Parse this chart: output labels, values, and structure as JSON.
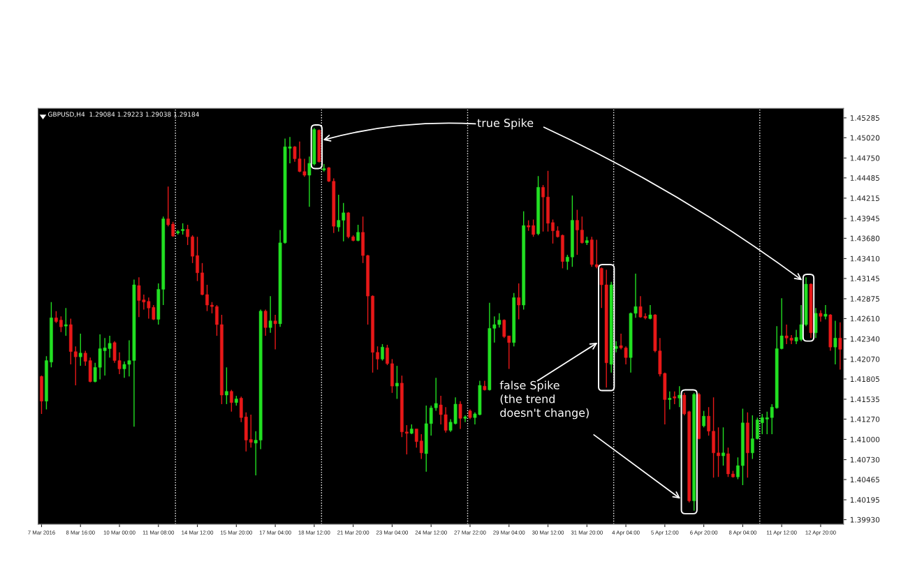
{
  "chart_data": {
    "type": "candlestick",
    "title": "GBPUSD,H4  1.29084 1.29223 1.29038 1.29184",
    "categories": [
      "7 Mar 2016",
      null,
      null,
      null,
      null,
      null,
      null,
      null,
      "8 Mar 16:00",
      null,
      null,
      null,
      null,
      null,
      null,
      null,
      "10 Mar 00:00",
      null,
      null,
      null,
      null,
      null,
      null,
      null,
      "11 Mar 08:00",
      null,
      null,
      null,
      null,
      null,
      null,
      null,
      "14 Mar 12:00",
      null,
      null,
      null,
      null,
      null,
      null,
      null,
      "15 Mar 20:00",
      null,
      null,
      null,
      null,
      null,
      null,
      null,
      "17 Mar 04:00",
      null,
      null,
      null,
      null,
      null,
      null,
      null,
      "18 Mar 12:00",
      null,
      null,
      null,
      null,
      null,
      null,
      null,
      "21 Mar 20:00",
      null,
      null,
      null,
      null,
      null,
      null,
      null,
      "23 Mar 04:00",
      null,
      null,
      null,
      null,
      null,
      null,
      null,
      "24 Mar 12:00",
      null,
      null,
      null,
      null,
      null,
      null,
      null,
      "27 Mar 22:00",
      null,
      null,
      null,
      null,
      null,
      null,
      null,
      "29 Mar 04:00",
      null,
      null,
      null,
      null,
      null,
      null,
      null,
      "30 Mar 12:00",
      null,
      null,
      null,
      null,
      null,
      null,
      null,
      "31 Mar 20:00",
      null,
      null,
      null,
      null,
      null,
      null,
      null,
      "4 Apr 04:00",
      null,
      null,
      null,
      null,
      null,
      null,
      null,
      "5 Apr 12:00",
      null,
      null,
      null,
      null,
      null,
      null,
      null,
      "6 Apr 20:00",
      null,
      null,
      null,
      null,
      null,
      null,
      null,
      "8 Apr 04:00",
      null,
      null,
      null,
      null,
      null,
      null,
      null,
      "11 Apr 12:00",
      null,
      null,
      null,
      null,
      null,
      null,
      null,
      "12 Apr 20:00",
      null,
      null,
      null,
      null
    ],
    "ohlc": [
      [
        1.4184,
        1.4185,
        1.4134,
        1.4151
      ],
      [
        1.4151,
        1.4211,
        1.414,
        1.4205
      ],
      [
        1.4203,
        1.4283,
        1.4196,
        1.4262
      ],
      [
        1.4262,
        1.4271,
        1.4255,
        1.4257
      ],
      [
        1.4259,
        1.4264,
        1.4243,
        1.425
      ],
      [
        1.4251,
        1.4275,
        1.4238,
        1.4253
      ],
      [
        1.4253,
        1.4261,
        1.42,
        1.4217
      ],
      [
        1.4217,
        1.4224,
        1.4172,
        1.421
      ],
      [
        1.421,
        1.4241,
        1.4198,
        1.4215
      ],
      [
        1.4215,
        1.4218,
        1.4198,
        1.4204
      ],
      [
        1.4205,
        1.4209,
        1.4176,
        1.4177
      ],
      [
        1.4177,
        1.4202,
        1.4176,
        1.4196
      ],
      [
        1.4196,
        1.424,
        1.418,
        1.4221
      ],
      [
        1.4218,
        1.4235,
        1.4185,
        1.4222
      ],
      [
        1.4221,
        1.4238,
        1.4209,
        1.4228
      ],
      [
        1.4229,
        1.4231,
        1.4202,
        1.4205
      ],
      [
        1.4205,
        1.4216,
        1.4187,
        1.4194
      ],
      [
        1.4194,
        1.4204,
        1.4182,
        1.42
      ],
      [
        1.42,
        1.4232,
        1.4184,
        1.4205
      ],
      [
        1.4205,
        1.4313,
        1.4117,
        1.4306
      ],
      [
        1.4305,
        1.4316,
        1.4263,
        1.4285
      ],
      [
        1.4286,
        1.4293,
        1.4273,
        1.4283
      ],
      [
        1.4284,
        1.4289,
        1.4261,
        1.4275
      ],
      [
        1.4276,
        1.4279,
        1.4259,
        1.426
      ],
      [
        1.426,
        1.4308,
        1.4253,
        1.43
      ],
      [
        1.43,
        1.4397,
        1.4279,
        1.4394
      ],
      [
        1.4394,
        1.4437,
        1.4384,
        1.4386
      ],
      [
        1.4387,
        1.439,
        1.437,
        1.4371
      ],
      [
        1.4375,
        1.4379,
        1.4373,
        1.4377
      ],
      [
        1.4378,
        1.4388,
        1.4373,
        1.438
      ],
      [
        1.438,
        1.4386,
        1.4359,
        1.437
      ],
      [
        1.437,
        1.4372,
        1.4335,
        1.4344
      ],
      [
        1.4345,
        1.437,
        1.4311,
        1.4322
      ],
      [
        1.4322,
        1.4335,
        1.4292,
        1.4293
      ],
      [
        1.4293,
        1.4306,
        1.4271,
        1.4279
      ],
      [
        1.4279,
        1.4283,
        1.4268,
        1.4277
      ],
      [
        1.4277,
        1.4279,
        1.4238,
        1.4253
      ],
      [
        1.4253,
        1.4266,
        1.4147,
        1.4159
      ],
      [
        1.4159,
        1.4196,
        1.4147,
        1.4164
      ],
      [
        1.4164,
        1.4166,
        1.4137,
        1.4149
      ],
      [
        1.4149,
        1.4158,
        1.4145,
        1.4154
      ],
      [
        1.4155,
        1.4157,
        1.4123,
        1.4129
      ],
      [
        1.413,
        1.4136,
        1.4084,
        1.4099
      ],
      [
        1.41,
        1.4133,
        1.4089,
        1.4096
      ],
      [
        1.4095,
        1.4111,
        1.4052,
        1.4099
      ],
      [
        1.4099,
        1.4273,
        1.4087,
        1.4271
      ],
      [
        1.4271,
        1.4273,
        1.4238,
        1.4249
      ],
      [
        1.4249,
        1.4291,
        1.4242,
        1.4258
      ],
      [
        1.4258,
        1.4266,
        1.422,
        1.4254
      ],
      [
        1.4254,
        1.4379,
        1.425,
        1.4362
      ],
      [
        1.4362,
        1.4501,
        1.4361,
        1.449
      ],
      [
        1.4488,
        1.4503,
        1.4468,
        1.449
      ],
      [
        1.449,
        1.4491,
        1.447,
        1.4474
      ],
      [
        1.4474,
        1.4497,
        1.4456,
        1.4457
      ],
      [
        1.4457,
        1.4474,
        1.445,
        1.4452
      ],
      [
        1.4452,
        1.4477,
        1.441,
        1.4468
      ],
      [
        1.4467,
        1.4515,
        1.4465,
        1.4513
      ],
      [
        1.4512,
        1.4513,
        1.4469,
        1.447
      ],
      [
        1.4459,
        1.4467,
        1.4457,
        1.4461
      ],
      [
        1.4462,
        1.4463,
        1.4443,
        1.4444
      ],
      [
        1.4444,
        1.4448,
        1.4375,
        1.4384
      ],
      [
        1.4383,
        1.4426,
        1.4377,
        1.4392
      ],
      [
        1.4392,
        1.4415,
        1.4364,
        1.4402
      ],
      [
        1.4402,
        1.4403,
        1.4368,
        1.437
      ],
      [
        1.437,
        1.4372,
        1.4364,
        1.4365
      ],
      [
        1.4365,
        1.4386,
        1.4364,
        1.4376
      ],
      [
        1.4376,
        1.4397,
        1.4335,
        1.4345
      ],
      [
        1.4345,
        1.4346,
        1.4253,
        1.4291
      ],
      [
        1.4291,
        1.4292,
        1.4189,
        1.4216
      ],
      [
        1.4216,
        1.4224,
        1.4193,
        1.4207
      ],
      [
        1.4207,
        1.4227,
        1.4205,
        1.4223
      ],
      [
        1.4222,
        1.4226,
        1.4199,
        1.4201
      ],
      [
        1.4201,
        1.4207,
        1.4162,
        1.4171
      ],
      [
        1.4171,
        1.4198,
        1.4154,
        1.4175
      ],
      [
        1.4175,
        1.4185,
        1.4103,
        1.411
      ],
      [
        1.411,
        1.4119,
        1.408,
        1.4108
      ],
      [
        1.4108,
        1.412,
        1.4107,
        1.4114
      ],
      [
        1.4114,
        1.4114,
        1.4089,
        1.4097
      ],
      [
        1.4098,
        1.4107,
        1.4074,
        1.4082
      ],
      [
        1.4081,
        1.4145,
        1.4057,
        1.4121
      ],
      [
        1.4121,
        1.4145,
        1.4105,
        1.4142
      ],
      [
        1.4142,
        1.4182,
        1.4138,
        1.4148
      ],
      [
        1.4146,
        1.4158,
        1.412,
        1.4133
      ],
      [
        1.4133,
        1.4143,
        1.4109,
        1.4112
      ],
      [
        1.4112,
        1.4127,
        1.411,
        1.4123
      ],
      [
        1.4121,
        1.4156,
        1.412,
        1.4147
      ],
      [
        1.4147,
        1.4151,
        1.4114,
        1.4128
      ],
      [
        1.4128,
        1.4132,
        1.4123,
        1.413
      ],
      [
        1.4138,
        1.414,
        1.4127,
        1.4129
      ],
      [
        1.4129,
        1.4136,
        1.412,
        1.4134
      ],
      [
        1.4133,
        1.4178,
        1.4132,
        1.4172
      ],
      [
        1.4171,
        1.4178,
        1.4165,
        1.4166
      ],
      [
        1.4166,
        1.4282,
        1.4165,
        1.4248
      ],
      [
        1.4248,
        1.4264,
        1.4229,
        1.4253
      ],
      [
        1.4253,
        1.4268,
        1.4249,
        1.4259
      ],
      [
        1.4259,
        1.426,
        1.4235,
        1.4237
      ],
      [
        1.4238,
        1.4238,
        1.4194,
        1.4229
      ],
      [
        1.4229,
        1.4295,
        1.4224,
        1.4289
      ],
      [
        1.4289,
        1.4308,
        1.426,
        1.4279
      ],
      [
        1.4279,
        1.4404,
        1.4273,
        1.4385
      ],
      [
        1.4385,
        1.4392,
        1.4378,
        1.4383
      ],
      [
        1.4385,
        1.4393,
        1.437,
        1.4373
      ],
      [
        1.4374,
        1.4451,
        1.4372,
        1.4436
      ],
      [
        1.4436,
        1.4439,
        1.4377,
        1.4423
      ],
      [
        1.4423,
        1.4458,
        1.4377,
        1.4388
      ],
      [
        1.4389,
        1.4393,
        1.4361,
        1.4378
      ],
      [
        1.4378,
        1.4384,
        1.4369,
        1.437
      ],
      [
        1.4372,
        1.4373,
        1.4328,
        1.4337
      ],
      [
        1.4337,
        1.4346,
        1.4326,
        1.4343
      ],
      [
        1.4343,
        1.4425,
        1.433,
        1.4392
      ],
      [
        1.4392,
        1.4406,
        1.4346,
        1.4379
      ],
      [
        1.4379,
        1.4397,
        1.4361,
        1.4362
      ],
      [
        1.4362,
        1.437,
        1.4359,
        1.4365
      ],
      [
        1.4366,
        1.437,
        1.433,
        1.4333
      ],
      [
        1.4333,
        1.4366,
        1.4328,
        1.433
      ],
      [
        1.4328,
        1.4329,
        1.4275,
        1.4306
      ],
      [
        1.4306,
        1.4326,
        1.4169,
        1.4202
      ],
      [
        1.42,
        1.431,
        1.4189,
        1.4306
      ],
      [
        1.4221,
        1.4231,
        1.4216,
        1.4224
      ],
      [
        1.4225,
        1.4241,
        1.422,
        1.4222
      ],
      [
        1.4222,
        1.4224,
        1.42,
        1.4209
      ],
      [
        1.4209,
        1.4269,
        1.4189,
        1.4268
      ],
      [
        1.4268,
        1.4321,
        1.4262,
        1.4277
      ],
      [
        1.4277,
        1.4291,
        1.4262,
        1.4263
      ],
      [
        1.4264,
        1.4268,
        1.426,
        1.4262
      ],
      [
        1.4261,
        1.4279,
        1.426,
        1.4266
      ],
      [
        1.4266,
        1.4267,
        1.4216,
        1.4218
      ],
      [
        1.4218,
        1.4235,
        1.4184,
        1.4187
      ],
      [
        1.4188,
        1.4189,
        1.412,
        1.4153
      ],
      [
        1.4153,
        1.4164,
        1.414,
        1.4155
      ],
      [
        1.4157,
        1.4164,
        1.4147,
        1.4155
      ],
      [
        1.4155,
        1.4171,
        1.4143,
        1.4159
      ],
      [
        1.4159,
        1.4162,
        1.4132,
        1.4134
      ],
      [
        1.4137,
        1.4138,
        1.4016,
        1.4018
      ],
      [
        1.4018,
        1.4162,
        1.4005,
        1.416
      ],
      [
        1.416,
        1.4162,
        1.41,
        1.4101
      ],
      [
        1.4118,
        1.4138,
        1.4116,
        1.4131
      ],
      [
        1.4131,
        1.4143,
        1.4105,
        1.4111
      ],
      [
        1.4111,
        1.4156,
        1.4049,
        1.4082
      ],
      [
        1.4082,
        1.4116,
        1.405,
        1.4078
      ],
      [
        1.4078,
        1.4116,
        1.4065,
        1.4082
      ],
      [
        1.4081,
        1.4089,
        1.405,
        1.4054
      ],
      [
        1.4054,
        1.4058,
        1.4049,
        1.405
      ],
      [
        1.405,
        1.4076,
        1.4047,
        1.4065
      ],
      [
        1.4065,
        1.4141,
        1.4039,
        1.4122
      ],
      [
        1.4122,
        1.4136,
        1.4049,
        1.4082
      ],
      [
        1.4082,
        1.4132,
        1.4074,
        1.4101
      ],
      [
        1.4101,
        1.4129,
        1.41,
        1.4126
      ],
      [
        1.4122,
        1.4134,
        1.4107,
        1.4129
      ],
      [
        1.4127,
        1.4137,
        1.4107,
        1.4129
      ],
      [
        1.4129,
        1.4147,
        1.4107,
        1.4143
      ],
      [
        1.4142,
        1.4251,
        1.4141,
        1.4221
      ],
      [
        1.4221,
        1.4288,
        1.422,
        1.4238
      ],
      [
        1.4238,
        1.4253,
        1.4227,
        1.4235
      ],
      [
        1.4235,
        1.4239,
        1.4227,
        1.4232
      ],
      [
        1.4231,
        1.4246,
        1.4227,
        1.4236
      ],
      [
        1.4233,
        1.4279,
        1.4231,
        1.4253
      ],
      [
        1.4253,
        1.4316,
        1.4251,
        1.4307
      ],
      [
        1.4307,
        1.4308,
        1.4235,
        1.4242
      ],
      [
        1.4242,
        1.4275,
        1.4235,
        1.4268
      ],
      [
        1.4268,
        1.4272,
        1.4257,
        1.4264
      ],
      [
        1.4264,
        1.4279,
        1.426,
        1.4267
      ],
      [
        1.4266,
        1.4267,
        1.4218,
        1.4223
      ],
      [
        1.4223,
        1.4258,
        1.42,
        1.4235
      ],
      [
        1.4235,
        1.4256,
        1.4193,
        1.422
      ]
    ],
    "ylim": [
      1.3987,
      1.4541
    ],
    "yticks": [
      1.45285,
      {
        "value": 1.4502,
        "label": "1.45020"
      },
      {
        "value": 1.4475,
        "label": "1.44750"
      },
      1.44485,
      1.44215,
      1.43945,
      {
        "value": 1.4368,
        "label": "1.43680"
      },
      {
        "value": 1.4341,
        "label": "1.43410"
      },
      1.43145,
      1.42875,
      {
        "value": 1.4261,
        "label": "1.42610"
      },
      {
        "value": 1.4234,
        "label": "1.42340"
      },
      {
        "value": 1.4207,
        "label": "1.42070"
      },
      1.41805,
      1.41535,
      {
        "value": 1.4127,
        "label": "1.41270"
      },
      {
        "value": 1.41,
        "label": "1.41000"
      },
      {
        "value": 1.4073,
        "label": "1.40730"
      },
      1.40465,
      1.40195,
      {
        "value": 1.3993,
        "label": "1.39930"
      }
    ],
    "annotations": [
      "true Spike",
      "false Spike\n(the trend\ndoesn't change)"
    ],
    "grid": false,
    "legend": false
  }
}
